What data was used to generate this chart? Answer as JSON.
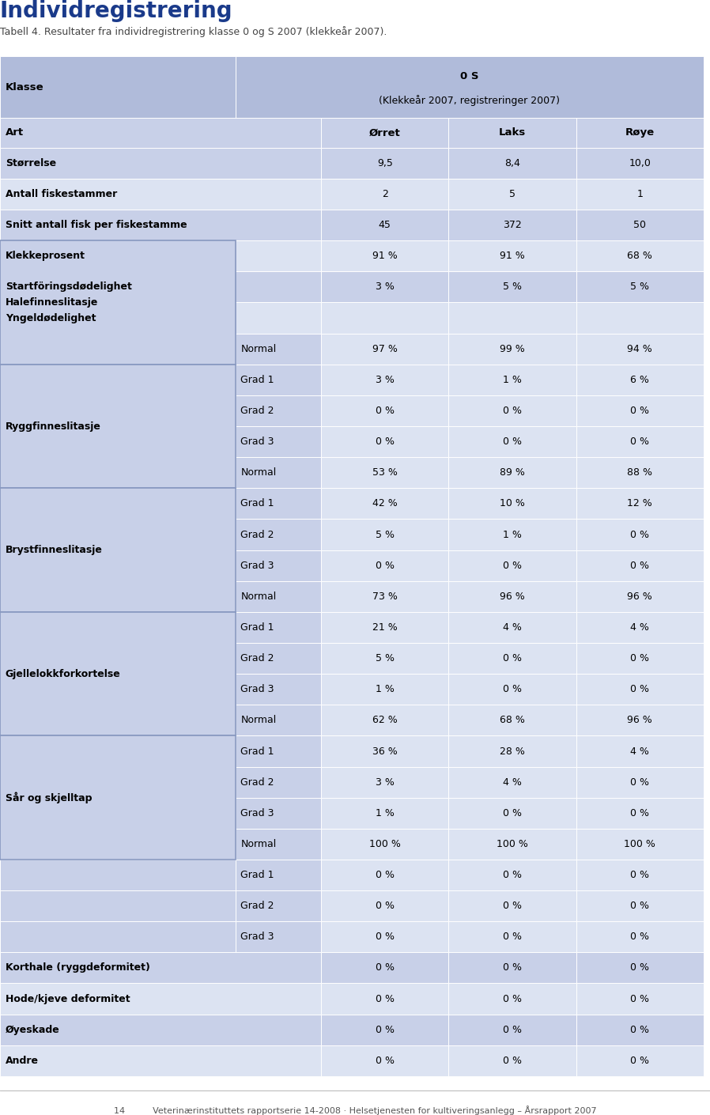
{
  "title": "Individregistrering",
  "subtitle": "Tabell 4. Resultater fra individregistrering klasse 0 og S 2007 (klekkeår 2007).",
  "header1": "0 S",
  "header2": "(Klekkeår 2007, registreringer 2007)",
  "col_header": "Klasse",
  "col1": "Ørret",
  "col2": "Laks",
  "col3": "Røye",
  "footer": "14          Veterinærinstituttets rapportserie 14-2008 · Helsetjenesten for kultiveringsanlegg – Årsrapport 2007",
  "title_color": "#1a3a8a",
  "subtitle_color": "#444444",
  "bg_header": "#b0bbda",
  "bg_row_a": "#c8d0e8",
  "bg_row_b": "#dce3f2",
  "bg_sub_label": "#c8d0e8",
  "bg_sub_val": "#dce3f2",
  "border_color": "#ffffff",
  "group_border_color": "#8898c0",
  "rows": [
    {
      "label": "Art",
      "sub": null,
      "vals": [
        "Ørret",
        "Laks",
        "Røye"
      ],
      "is_col_header": true
    },
    {
      "label": "Størrelse",
      "sub": null,
      "vals": [
        "9,5",
        "8,4",
        "10,0"
      ]
    },
    {
      "label": "Antall fiskestammer",
      "sub": null,
      "vals": [
        "2",
        "5",
        "1"
      ]
    },
    {
      "label": "Snitt antall fisk per fiskestamme",
      "sub": null,
      "vals": [
        "45",
        "372",
        "50"
      ]
    },
    {
      "label": "Klekkeprosent",
      "sub": null,
      "vals": [
        "91 %",
        "91 %",
        "68 %"
      ]
    },
    {
      "label": "Startföringsdødelighet",
      "sub": null,
      "vals": [
        "3 %",
        "5 %",
        "5 %"
      ]
    },
    {
      "label": "Yngeldødelighet",
      "sub": null,
      "vals": [
        "",
        "",
        ""
      ]
    },
    {
      "label": "Halefinneslitasje",
      "sub": "Normal",
      "vals": [
        "97 %",
        "99 %",
        "94 %"
      ],
      "group_start": true,
      "group_size": 4
    },
    {
      "label": "",
      "sub": "Grad 1",
      "vals": [
        "3 %",
        "1 %",
        "6 %"
      ]
    },
    {
      "label": "",
      "sub": "Grad 2",
      "vals": [
        "0 %",
        "0 %",
        "0 %"
      ]
    },
    {
      "label": "",
      "sub": "Grad 3",
      "vals": [
        "0 %",
        "0 %",
        "0 %"
      ]
    },
    {
      "label": "Ryggfinneslitasje",
      "sub": "Normal",
      "vals": [
        "53 %",
        "89 %",
        "88 %"
      ],
      "group_start": true,
      "group_size": 4
    },
    {
      "label": "",
      "sub": "Grad 1",
      "vals": [
        "42 %",
        "10 %",
        "12 %"
      ]
    },
    {
      "label": "",
      "sub": "Grad 2",
      "vals": [
        "5 %",
        "1 %",
        "0 %"
      ]
    },
    {
      "label": "",
      "sub": "Grad 3",
      "vals": [
        "0 %",
        "0 %",
        "0 %"
      ]
    },
    {
      "label": "Brystfinneslitasje",
      "sub": "Normal",
      "vals": [
        "73 %",
        "96 %",
        "96 %"
      ],
      "group_start": true,
      "group_size": 4
    },
    {
      "label": "",
      "sub": "Grad 1",
      "vals": [
        "21 %",
        "4 %",
        "4 %"
      ]
    },
    {
      "label": "",
      "sub": "Grad 2",
      "vals": [
        "5 %",
        "0 %",
        "0 %"
      ]
    },
    {
      "label": "",
      "sub": "Grad 3",
      "vals": [
        "1 %",
        "0 %",
        "0 %"
      ]
    },
    {
      "label": "Gjellelokkforkortelse",
      "sub": "Normal",
      "vals": [
        "62 %",
        "68 %",
        "96 %"
      ],
      "group_start": true,
      "group_size": 4
    },
    {
      "label": "",
      "sub": "Grad 1",
      "vals": [
        "36 %",
        "28 %",
        "4 %"
      ]
    },
    {
      "label": "",
      "sub": "Grad 2",
      "vals": [
        "3 %",
        "4 %",
        "0 %"
      ]
    },
    {
      "label": "",
      "sub": "Grad 3",
      "vals": [
        "1 %",
        "0 %",
        "0 %"
      ]
    },
    {
      "label": "Sår og skjelltap",
      "sub": "Normal",
      "vals": [
        "100 %",
        "100 %",
        "100 %"
      ],
      "group_start": true,
      "group_size": 4
    },
    {
      "label": "",
      "sub": "Grad 1",
      "vals": [
        "0 %",
        "0 %",
        "0 %"
      ]
    },
    {
      "label": "",
      "sub": "Grad 2",
      "vals": [
        "0 %",
        "0 %",
        "0 %"
      ]
    },
    {
      "label": "",
      "sub": "Grad 3",
      "vals": [
        "0 %",
        "0 %",
        "0 %"
      ]
    },
    {
      "label": "Korthale (ryggdeformitet)",
      "sub": null,
      "vals": [
        "0 %",
        "0 %",
        "0 %"
      ]
    },
    {
      "label": "Hode/kjeve deformitet",
      "sub": null,
      "vals": [
        "0 %",
        "0 %",
        "0 %"
      ]
    },
    {
      "label": "Øyeskade",
      "sub": null,
      "vals": [
        "0 %",
        "0 %",
        "0 %"
      ]
    },
    {
      "label": "Andre",
      "sub": null,
      "vals": [
        "0 %",
        "0 %",
        "0 %"
      ]
    }
  ]
}
